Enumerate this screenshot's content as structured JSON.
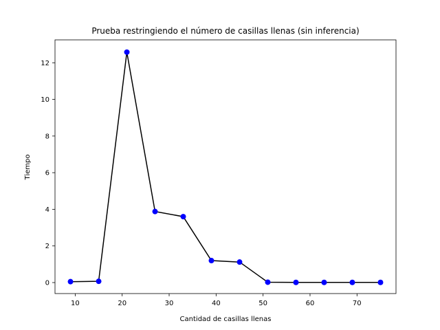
{
  "chart_data": {
    "type": "line",
    "title": "Prueba restringiendo el número de casillas llenas (sin inferencia)",
    "xlabel": "Cantidad de casillas llenas",
    "ylabel": "Tiempo",
    "xlim": [
      5.7,
      78.3
    ],
    "ylim": [
      -0.6,
      13.25
    ],
    "xticks": [
      10,
      20,
      30,
      40,
      50,
      60,
      70
    ],
    "yticks": [
      0,
      2,
      4,
      6,
      8,
      10,
      12
    ],
    "grid": false,
    "line_color": "#000000",
    "marker_color": "#0000ff",
    "series": [
      {
        "x": [
          9,
          15,
          21,
          27,
          33,
          39,
          45,
          51,
          57,
          63,
          69,
          75
        ],
        "y": [
          0.05,
          0.07,
          12.58,
          3.88,
          3.6,
          1.2,
          1.12,
          0.02,
          0.01,
          0.01,
          0.01,
          0.01
        ]
      }
    ]
  }
}
